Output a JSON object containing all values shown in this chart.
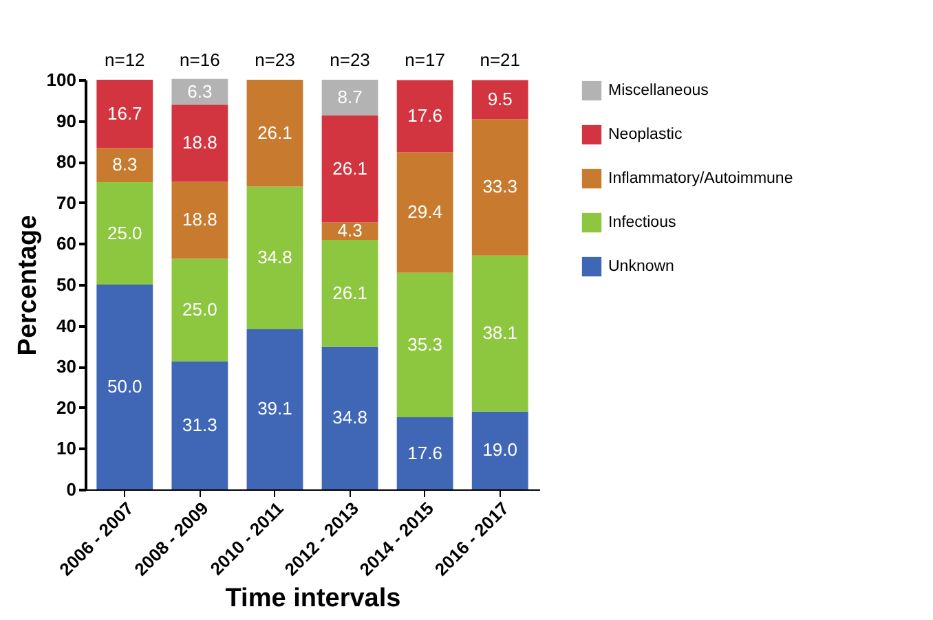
{
  "chart_data": {
    "type": "bar",
    "stacked": true,
    "xlabel": "Time intervals",
    "ylabel": "Percentage",
    "categories": [
      "2006 - 2007",
      "2008 - 2009",
      "2010 - 2011",
      "2012 - 2013",
      "2014 - 2015",
      "2016 - 2017"
    ],
    "series": [
      {
        "name": "Unknown",
        "color": "#3f67b5",
        "values": [
          50.0,
          31.3,
          39.1,
          34.8,
          17.6,
          19.0
        ],
        "value_labels": [
          "50.0",
          "31.3",
          "39.1",
          "34.8",
          "17.6",
          "19.0"
        ]
      },
      {
        "name": "Infectious",
        "color": "#8dc63f",
        "values": [
          25.0,
          25.0,
          34.8,
          26.1,
          35.3,
          38.1
        ],
        "value_labels": [
          "25.0",
          "25.0",
          "34.8",
          "26.1",
          "35.3",
          "38.1"
        ]
      },
      {
        "name": "Inflammatory/Autoimmune",
        "color": "#c87a2e",
        "values": [
          8.3,
          18.8,
          26.1,
          4.3,
          29.4,
          33.3
        ],
        "value_labels": [
          "8.3",
          "18.8",
          "26.1",
          "4.3",
          "29.4",
          "33.3"
        ]
      },
      {
        "name": "Neoplastic",
        "color": "#d2353f",
        "values": [
          16.7,
          18.8,
          null,
          26.1,
          17.6,
          9.5
        ],
        "value_labels": [
          "16.7",
          "18.8",
          null,
          "26.1",
          "17.6",
          "9.5"
        ]
      },
      {
        "name": "Miscellaneous",
        "color": "#b3b3b3",
        "values": [
          null,
          6.3,
          null,
          8.7,
          null,
          null
        ],
        "value_labels": [
          null,
          "6.3",
          null,
          "8.7",
          null,
          null
        ]
      }
    ],
    "ylim": [
      0,
      100
    ],
    "yticks": [
      0,
      10,
      20,
      30,
      40,
      50,
      60,
      70,
      80,
      90,
      100
    ],
    "grid": false,
    "legend": "right",
    "annotations": [
      "n=12",
      "n=16",
      "n=23",
      "n=23",
      "n=17",
      "n=21"
    ]
  }
}
